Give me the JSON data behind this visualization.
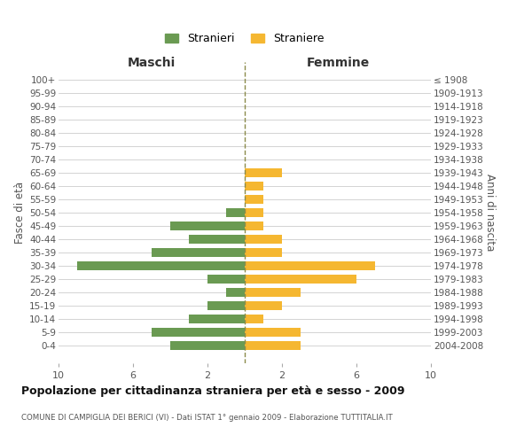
{
  "age_groups": [
    "100+",
    "95-99",
    "90-94",
    "85-89",
    "80-84",
    "75-79",
    "70-74",
    "65-69",
    "60-64",
    "55-59",
    "50-54",
    "45-49",
    "40-44",
    "35-39",
    "30-34",
    "25-29",
    "20-24",
    "15-19",
    "10-14",
    "5-9",
    "0-4"
  ],
  "birth_years": [
    "≤ 1908",
    "1909-1913",
    "1914-1918",
    "1919-1923",
    "1924-1928",
    "1929-1933",
    "1934-1938",
    "1939-1943",
    "1944-1948",
    "1949-1953",
    "1954-1958",
    "1959-1963",
    "1964-1968",
    "1969-1973",
    "1974-1978",
    "1979-1983",
    "1984-1988",
    "1989-1993",
    "1994-1998",
    "1999-2003",
    "2004-2008"
  ],
  "maschi": [
    0,
    0,
    0,
    0,
    0,
    0,
    0,
    0,
    0,
    0,
    1,
    4,
    3,
    5,
    9,
    2,
    1,
    2,
    3,
    5,
    4
  ],
  "femmine": [
    0,
    0,
    0,
    0,
    0,
    0,
    0,
    2,
    1,
    1,
    1,
    1,
    2,
    2,
    7,
    6,
    3,
    2,
    1,
    3,
    3
  ],
  "maschi_color": "#6a9a52",
  "femmine_color": "#f5b731",
  "title": "Popolazione per cittadinanza straniera per età e sesso - 2009",
  "subtitle": "COMUNE DI CAMPIGLIA DEI BERICI (VI) - Dati ISTAT 1° gennaio 2009 - Elaborazione TUTTITALIA.IT",
  "ylabel_left": "Fasce di età",
  "ylabel_right": "Anni di nascita",
  "xlabel_left": "Maschi",
  "xlabel_right": "Femmine",
  "legend_maschi": "Stranieri",
  "legend_femmine": "Straniere",
  "xlim": 10,
  "bg_color": "#ffffff",
  "grid_color": "#cccccc",
  "dashed_line_color": "#8b8b4b",
  "xticks_pos": [
    -10,
    -6,
    -2,
    2,
    6,
    10
  ],
  "xticks_labels": [
    "10",
    "6",
    "2",
    "2",
    "6",
    "10"
  ]
}
